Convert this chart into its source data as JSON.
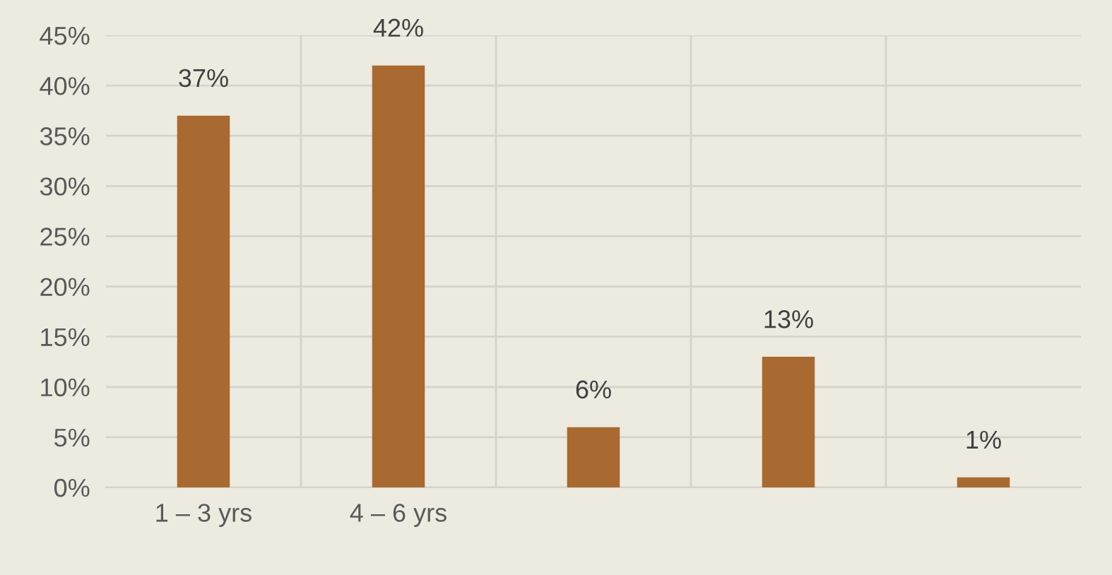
{
  "chart_data": {
    "type": "bar",
    "categories": [
      "1 – 3 yrs",
      "4 – 6 yrs",
      null,
      null,
      null
    ],
    "values": [
      37,
      42,
      6,
      13,
      1
    ],
    "value_labels": [
      "37%",
      "42%",
      "6%",
      "13%",
      "1%"
    ],
    "color": "#a86a30",
    "ylim": [
      0,
      45
    ],
    "yticks": [
      {
        "value": 0,
        "label": "0%"
      },
      {
        "value": 5,
        "label": "5%"
      },
      {
        "value": 10,
        "label": "10%"
      },
      {
        "value": 15,
        "label": "15%"
      },
      {
        "value": 20,
        "label": "20%"
      },
      {
        "value": 25,
        "label": "25%"
      },
      {
        "value": 30,
        "label": "30%"
      },
      {
        "value": 35,
        "label": "35%"
      },
      {
        "value": 40,
        "label": "40%"
      },
      {
        "value": 45,
        "label": "45%"
      }
    ],
    "grid": true,
    "legend": false
  }
}
